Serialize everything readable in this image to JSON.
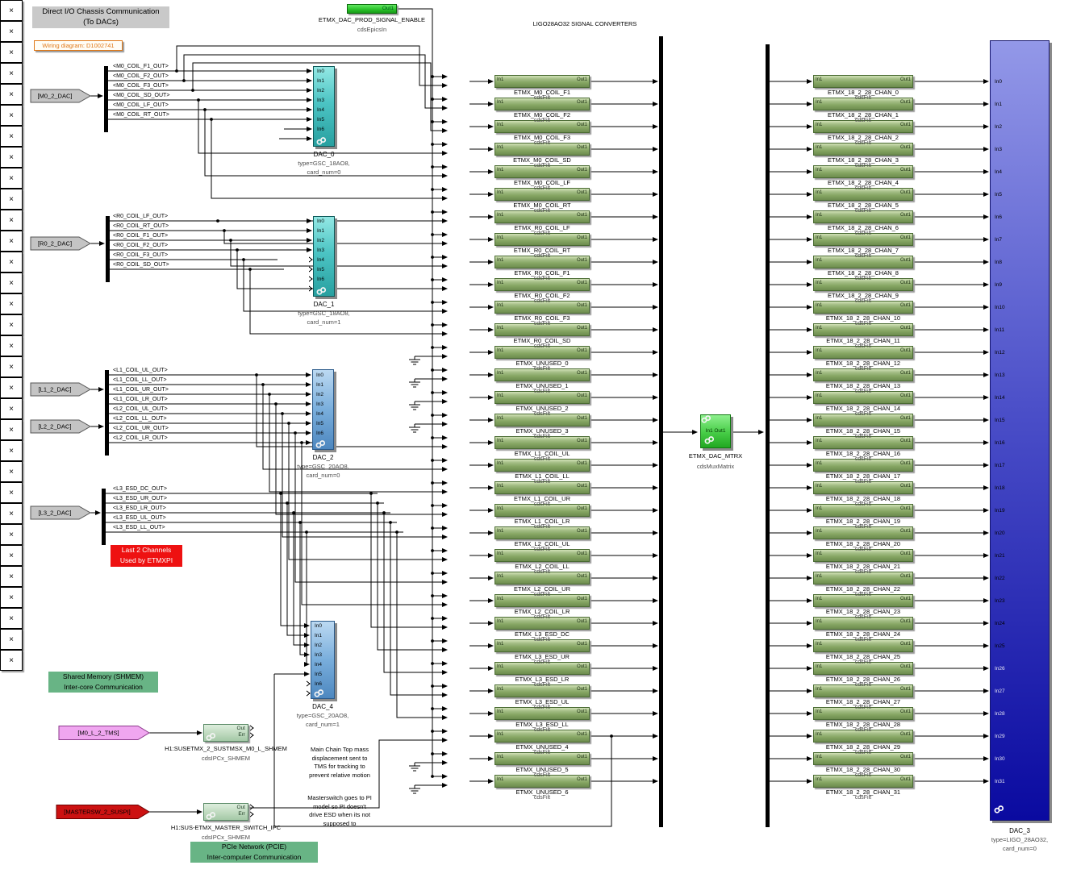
{
  "header": {
    "title_line1": "Direct I/O Chassis Communication",
    "title_line2": "(To DACs)",
    "wiring": "Wiring diagram: D1002741",
    "converters_title": "LIGO28AO32 SIGNAL CONVERTERS"
  },
  "epics_enable": {
    "port": "Out1",
    "name": "ETMX_DAC_PROD_SIGNAL_ENABLE",
    "lib": "cdsEpicsIn"
  },
  "mult_symbol": "×",
  "filt": {
    "in": "In1",
    "out": "Out1",
    "lib": "cdsFilt"
  },
  "buses": [
    {
      "tag": "[M0_2_DAC]",
      "signals": [
        "<M0_COIL_F1_OUT>",
        "<M0_COIL_F2_OUT>",
        "<M0_COIL_F3_OUT>",
        "<M0_COIL_SD_OUT>",
        "<M0_COIL_LF_OUT>",
        "<M0_COIL_RT_OUT>"
      ]
    },
    {
      "tag": "[R0_2_DAC]",
      "signals": [
        "<R0_COIL_LF_OUT>",
        "<R0_COIL_RT_OUT>",
        "<R0_COIL_F1_OUT>",
        "<R0_COIL_F2_OUT>",
        "<R0_COIL_F3_OUT>",
        "<R0_COIL_SD_OUT>"
      ]
    },
    {
      "tag": "[L1_2_DAC]",
      "signals": [
        "<L1_COIL_UL_OUT>",
        "<L1_COIL_LL_OUT>",
        "<L1_COIL_UR_OUT>",
        "<L1_COIL_LR_OUT>"
      ]
    },
    {
      "tag": "[L2_2_DAC]",
      "signals": [
        "<L2_COIL_UL_OUT>",
        "<L2_COIL_LL_OUT>",
        "<L2_COIL_UR_OUT>",
        "<L2_COIL_LR_OUT>"
      ]
    },
    {
      "tag": "[L3_2_DAC]",
      "signals": [
        "<L3_ESD_DC_OUT>",
        "<L3_ESD_UR_OUT>",
        "<L3_ESD_LR_OUT>",
        "<L3_ESD_UL_OUT>",
        "<L3_ESD_LL_OUT>"
      ]
    }
  ],
  "dacs": [
    {
      "name": "DAC_0",
      "type": "type=GSC_18AO8,",
      "card": "card_num=0",
      "color": "teal",
      "ports": [
        "In0",
        "In1",
        "In2",
        "In3",
        "In4",
        "In5",
        "In6"
      ]
    },
    {
      "name": "DAC_1",
      "type": "type=GSC_18AO8,",
      "card": "card_num=1",
      "color": "teal",
      "ports": [
        "In0",
        "In1",
        "In2",
        "In3",
        "In4",
        "In5",
        "In6"
      ]
    },
    {
      "name": "DAC_2",
      "type": "type=GSC_20AO8,",
      "card": "card_num=0",
      "color": "blue",
      "ports": [
        "In0",
        "In1",
        "In2",
        "In3",
        "In4",
        "In5",
        "In6"
      ]
    },
    {
      "name": "DAC_4",
      "type": "type=GSC_20AO8,",
      "card": "card_num=1",
      "color": "blue",
      "ports": [
        "In0",
        "In1",
        "In2",
        "In3",
        "In4",
        "In5",
        "In6"
      ]
    }
  ],
  "mid_filters": [
    "ETMX_M0_COIL_F1",
    "ETMX_M0_COIL_F2",
    "ETMX_M0_COIL_F3",
    "ETMX_M0_COIL_SD",
    "ETMX_M0_COIL_LF",
    "ETMX_M0_COIL_RT",
    "ETMX_R0_COIL_LF",
    "ETMX_R0_COIL_RT",
    "ETMX_R0_COIL_F1",
    "ETMX_R0_COIL_F2",
    "ETMX_R0_COIL_F3",
    "ETMX_R0_COIL_SD",
    "ETMX_UNUSED_0",
    "ETMX_UNUSED_1",
    "ETMX_UNUSED_2",
    "ETMX_UNUSED_3",
    "ETMX_L1_COIL_UL",
    "ETMX_L1_COIL_LL",
    "ETMX_L1_COIL_UR",
    "ETMX_L1_COIL_LR",
    "ETMX_L2_COIL_UL",
    "ETMX_L2_COIL_LL",
    "ETMX_L2_COIL_UR",
    "ETMX_L2_COIL_LR",
    "ETMX_L3_ESD_DC",
    "ETMX_L3_ESD_UR",
    "ETMX_L3_ESD_LR",
    "ETMX_L3_ESD_UL",
    "ETMX_L3_ESD_LL",
    "ETMX_UNUSED_4",
    "ETMX_UNUSED_5",
    "ETMX_UNUSED_6"
  ],
  "right_filters": [
    "ETMX_18_2_28_CHAN_0",
    "ETMX_18_2_28_CHAN_1",
    "ETMX_18_2_28_CHAN_2",
    "ETMX_18_2_28_CHAN_3",
    "ETMX_18_2_28_CHAN_4",
    "ETMX_18_2_28_CHAN_5",
    "ETMX_18_2_28_CHAN_6",
    "ETMX_18_2_28_CHAN_7",
    "ETMX_18_2_28_CHAN_8",
    "ETMX_18_2_28_CHAN_9",
    "ETMX_18_2_28_CHAN_10",
    "ETMX_18_2_28_CHAN_11",
    "ETMX_18_2_28_CHAN_12",
    "ETMX_18_2_28_CHAN_13",
    "ETMX_18_2_28_CHAN_14",
    "ETMX_18_2_28_CHAN_15",
    "ETMX_18_2_28_CHAN_16",
    "ETMX_18_2_28_CHAN_17",
    "ETMX_18_2_28_CHAN_18",
    "ETMX_18_2_28_CHAN_19",
    "ETMX_18_2_28_CHAN_20",
    "ETMX_18_2_28_CHAN_21",
    "ETMX_18_2_28_CHAN_22",
    "ETMX_18_2_28_CHAN_23",
    "ETMX_18_2_28_CHAN_24",
    "ETMX_18_2_28_CHAN_25",
    "ETMX_18_2_28_CHAN_26",
    "ETMX_18_2_28_CHAN_27",
    "ETMX_18_2_28_CHAN_28",
    "ETMX_18_2_28_CHAN_29",
    "ETMX_18_2_28_CHAN_30",
    "ETMX_18_2_28_CHAN_31"
  ],
  "matrix": {
    "ports": "In1 Out1",
    "name": "ETMX_DAC_MTRX",
    "lib": "cdsMuxMatrix"
  },
  "dac3": {
    "name": "DAC_3",
    "type": "type=LIGO_28AO32,",
    "card": "card_num=0",
    "ports": [
      "In0",
      "In1",
      "In2",
      "In3",
      "In4",
      "In5",
      "In6",
      "In7",
      "In8",
      "In9",
      "In10",
      "In11",
      "In12",
      "In13",
      "In14",
      "In15",
      "In16",
      "In17",
      "In18",
      "In19",
      "In20",
      "In21",
      "In22",
      "In23",
      "In24",
      "In25",
      "In26",
      "In27",
      "In28",
      "In29",
      "In30",
      "In31"
    ]
  },
  "ipc": [
    {
      "tag": "[M0_L_2_TMS]",
      "name": "H1:SUSETMX_2_SUSTMSX_M0_L_SHMEM",
      "lib": "cdsIPCx_SHMEM",
      "out": "Out",
      "err": "Err"
    },
    {
      "tag": "[MASTERSW_2_SUSPI]",
      "name": "H1:SUS-ETMX_MASTER_SWITCH_IPC",
      "lib": "cdsIPCx_SHMEM",
      "out": "Out",
      "err": "Err"
    }
  ],
  "notes": {
    "last2": [
      "Last 2 Channels",
      "Used by ETMXPI"
    ],
    "shmem": [
      "Shared Memory (SHMEM)",
      "Inter-core Communication"
    ],
    "pcie": [
      "PCIe Network (PCIE)",
      "Inter-computer Communication"
    ],
    "tms_note": [
      "Main Chain Top mass",
      "displacement sent to",
      "TMS for tracking to",
      "prevent relative motion"
    ],
    "master_note": [
      "Masterswitch goes to PI",
      "model so PI doesn't",
      "drive ESD when its not",
      "supposed to"
    ]
  },
  "colors": {
    "teal_dac": "#49C2C2",
    "blue_dac": "#79AEDC",
    "dac3_top": "#9398E8",
    "dac3_bottom": "#0A0AA0",
    "filt_green": "#8FAE6D",
    "bright_green": "#2ECC2E",
    "matrix_green": "#46CC46",
    "ipc_green": "#C2DEC4",
    "annotation_green": "#68B485",
    "note_red": "#EE1111",
    "tag_pink": "#F0A6F0",
    "tag_red": "#CC1111",
    "tag_gray": "#C4C4C4",
    "title_gray": "#C9C9C9",
    "wiring_orange": "#E07818"
  }
}
